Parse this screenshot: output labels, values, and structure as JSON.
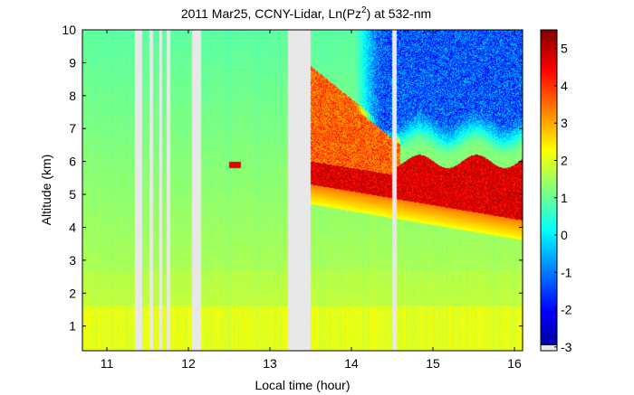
{
  "chart_data": {
    "type": "heatmap",
    "title": "2011 Mar25, CCNY-Lidar, Ln(Pz",
    "title_sup": "2",
    "title_suffix": ") at 532-nm",
    "xlabel": "Local time (hour)",
    "ylabel": "Altitude (km)",
    "xlim": [
      10.7,
      16.1
    ],
    "ylim": [
      0.25,
      10
    ],
    "xticks": [
      "11",
      "12",
      "13",
      "14",
      "15",
      "16"
    ],
    "yticks": [
      "1",
      "2",
      "3",
      "4",
      "5",
      "6",
      "7",
      "8",
      "9",
      "10"
    ],
    "colorbar": {
      "range": [
        -3.1,
        5.5
      ],
      "ticks": [
        "-3",
        "-2",
        "-1",
        "0",
        "1",
        "2",
        "3",
        "4",
        "5"
      ],
      "colormap": "jet",
      "nodata_color": "#e8e8e8"
    },
    "data_gaps_hours": [
      [
        11.35,
        11.43
      ],
      [
        11.52,
        11.57
      ],
      [
        11.64,
        11.68
      ],
      [
        11.73,
        11.78
      ],
      [
        12.05,
        12.16
      ],
      [
        13.22,
        13.5
      ],
      [
        14.5,
        14.56
      ]
    ],
    "features": [
      {
        "name": "aerosol/boundary layer",
        "value_range": [
          1.7,
          2.3
        ],
        "altitude_km": [
          0.25,
          1.8
        ]
      },
      {
        "name": "cloud layer",
        "value_range": [
          3.5,
          5.2
        ],
        "altitude_km_start": [
          5.2,
          6.0
        ],
        "altitude_km_end": [
          4.3,
          6.0
        ],
        "time_h": [
          13.5,
          16.1
        ]
      },
      {
        "name": "attenuated signal above cloud",
        "value_range": [
          -3,
          0
        ],
        "altitude_km": [
          6.2,
          10
        ],
        "time_h": [
          14.5,
          16.1
        ]
      }
    ]
  }
}
